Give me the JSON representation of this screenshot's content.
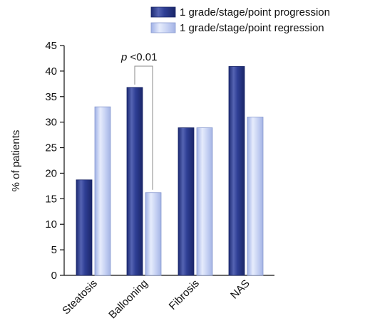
{
  "chart_data": {
    "type": "bar",
    "categories": [
      "Steatosis",
      "Ballooning",
      "Fibrosis",
      "NAS"
    ],
    "series": [
      {
        "name": "1 grade/stage/point progression",
        "values": [
          18.7,
          36.8,
          28.9,
          40.9
        ],
        "color": "#2a3a8c"
      },
      {
        "name": "1 grade/stage/point regression",
        "values": [
          33.0,
          16.2,
          28.9,
          31.0
        ],
        "color": "#c8d4f4"
      }
    ],
    "ylabel": "% of patients",
    "xlabel": "",
    "ylim": [
      0,
      45
    ],
    "yticks": [
      0,
      5,
      10,
      15,
      20,
      25,
      30,
      35,
      40,
      45
    ],
    "legend_position": "top-right",
    "grid": false,
    "annotation": {
      "prefix": "p",
      "text": " <0.01",
      "between": [
        "Ballooning"
      ]
    }
  }
}
